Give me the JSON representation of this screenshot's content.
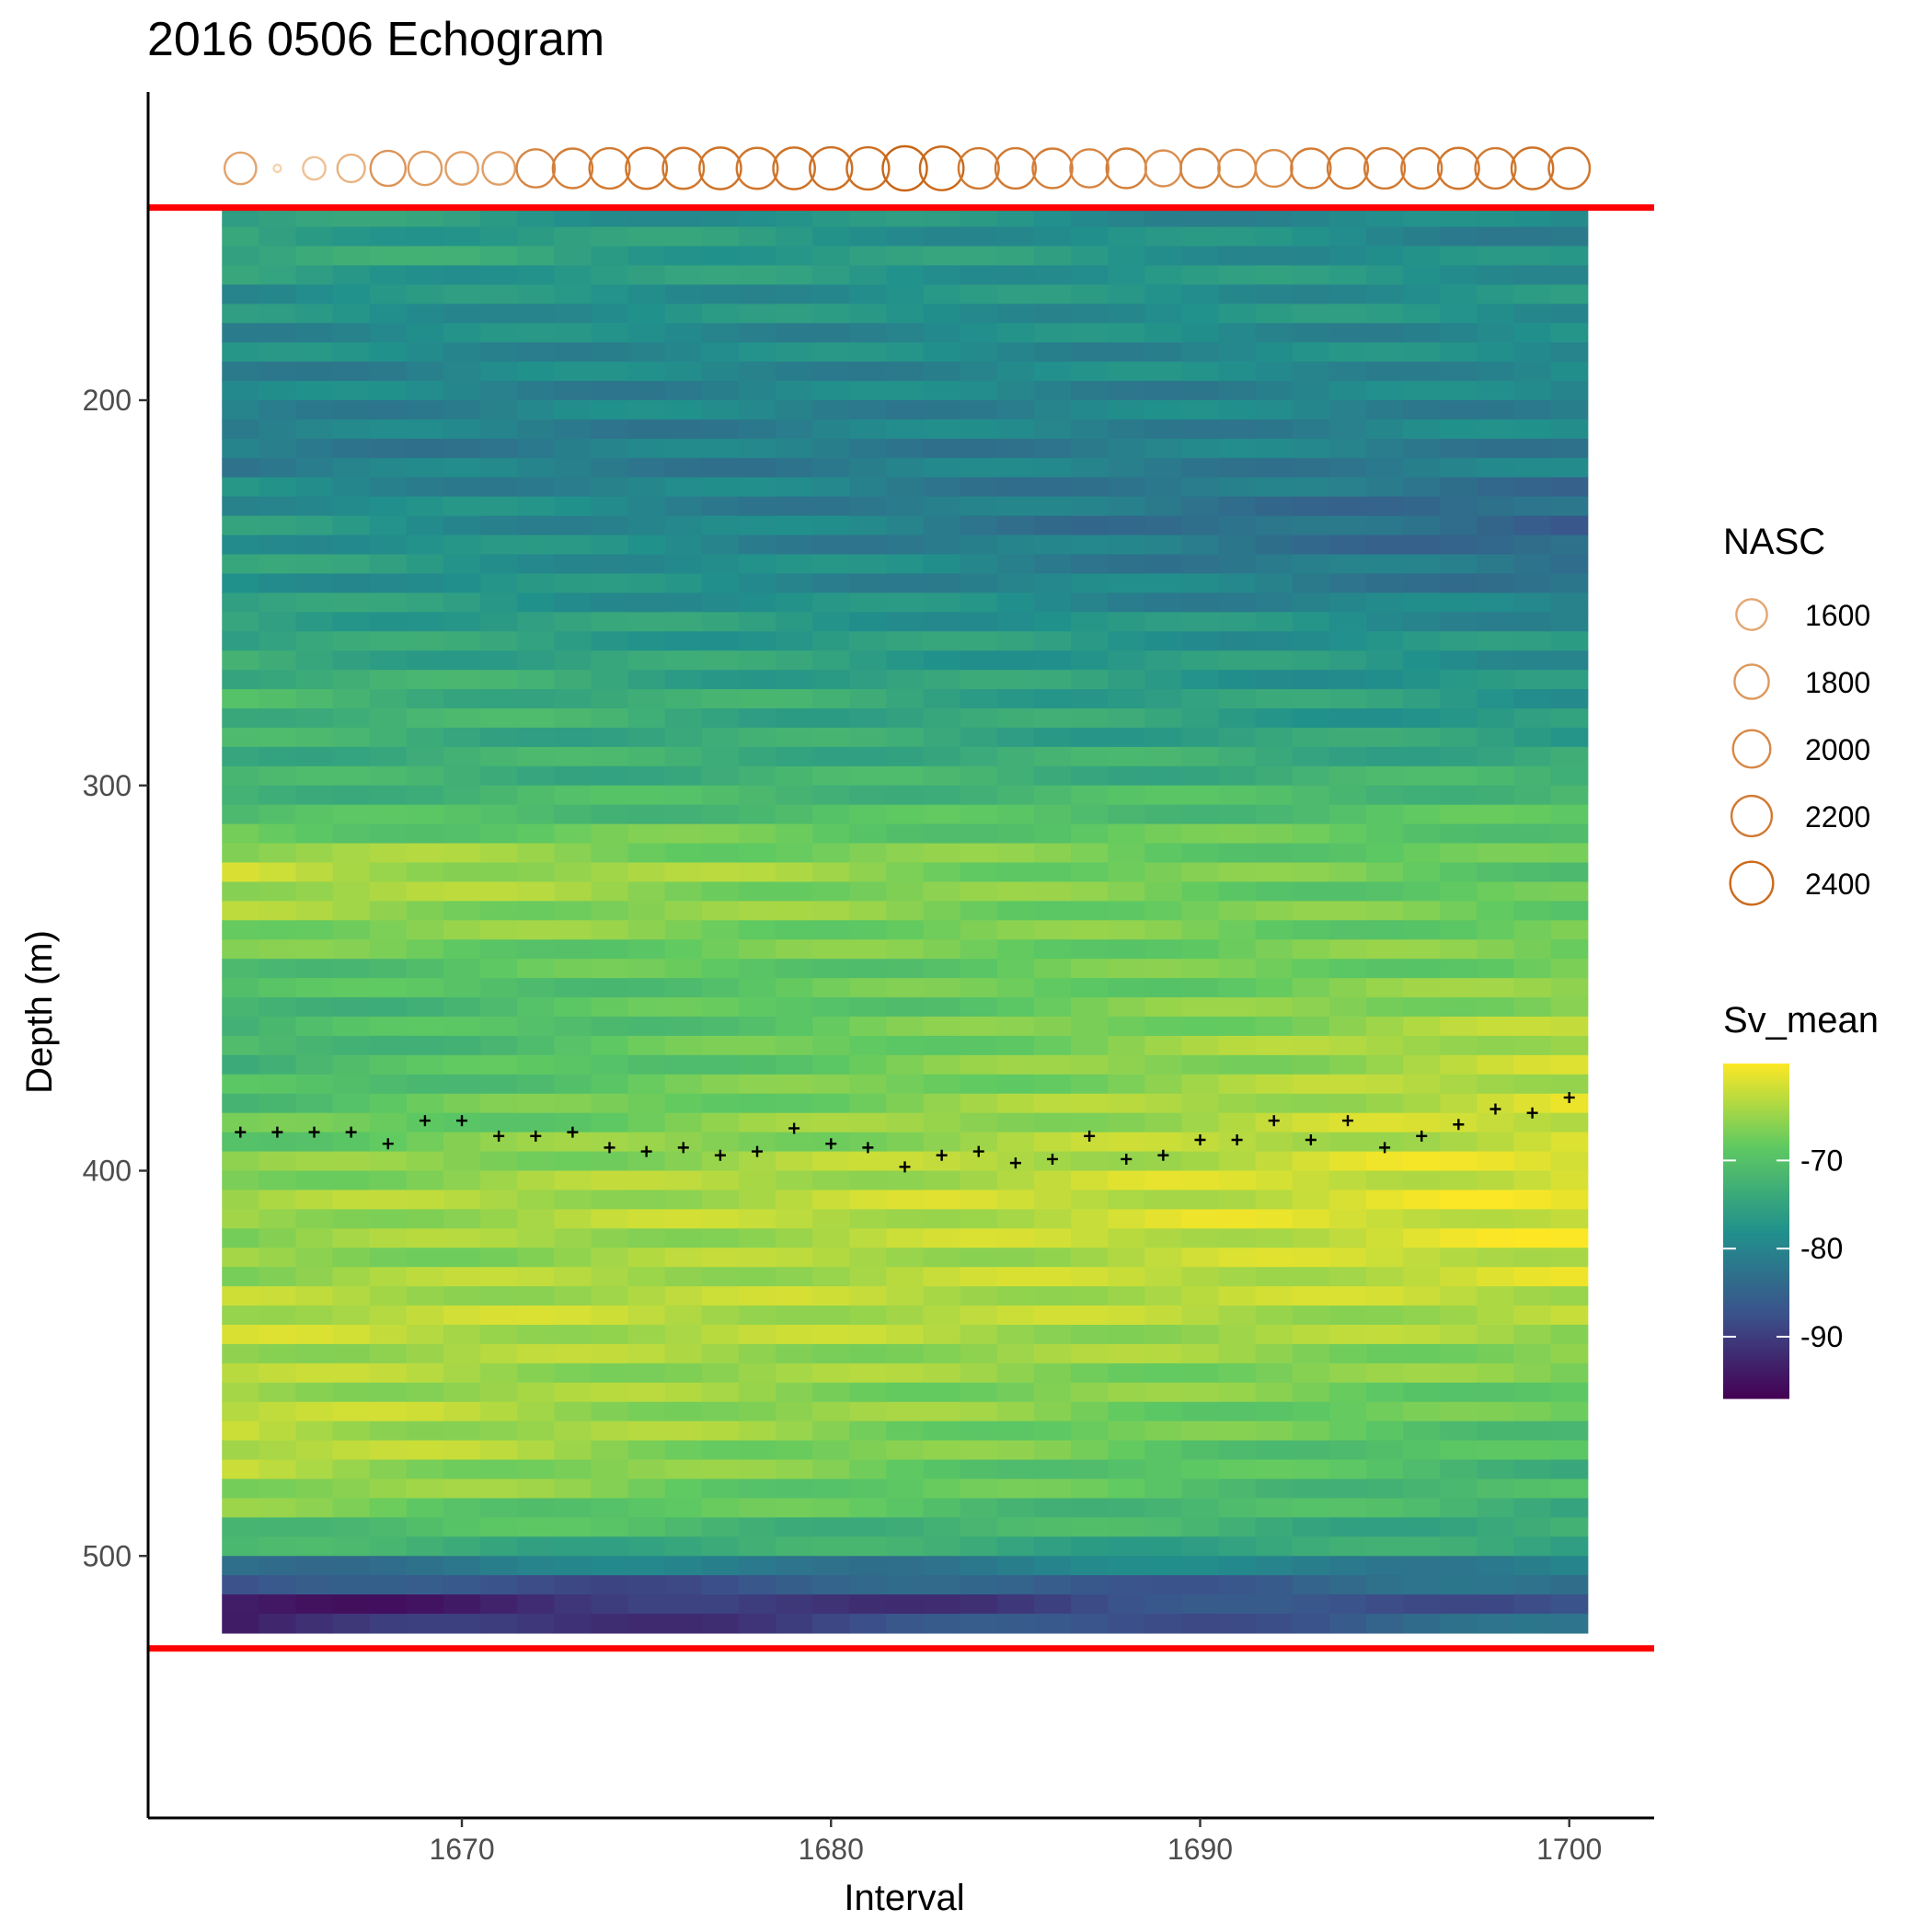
{
  "chart_data": {
    "type": "heatmap",
    "title": "2016 0506 Echogram",
    "xlabel": "Interval",
    "ylabel": "Depth (m)",
    "x_range": [
      1663.5,
      1700.5
    ],
    "depth_range": [
      150,
      520
    ],
    "depth_bin_m": 5,
    "xlim": [
      1661.5,
      1702.3
    ],
    "ylim": [
      568,
      120
    ],
    "x_ticks": [
      1670,
      1680,
      1690,
      1700
    ],
    "y_ticks": [
      200,
      300,
      400,
      500
    ],
    "reference_lines": [
      150,
      524
    ],
    "reference_line_color": "#ff0000",
    "legend_position": "right",
    "grid": false,
    "sv_legend": {
      "title": "Sv_mean",
      "range": [
        -97,
        -59
      ],
      "breaks": [
        -70,
        -80,
        -90
      ],
      "colormap": "viridis",
      "colors": [
        "#440154",
        "#3b528b",
        "#21918c",
        "#5ec962",
        "#fde725"
      ]
    },
    "nasc_legend": {
      "title": "NASC",
      "breaks": [
        1600,
        1800,
        2000,
        2200,
        2400
      ],
      "color_low": "#f5d3b0",
      "color_high": "#c86413"
    },
    "nasc_series": {
      "name": "NASC",
      "x": [
        1664,
        1665,
        1666,
        1667,
        1668,
        1669,
        1670,
        1671,
        1672,
        1673,
        1674,
        1675,
        1676,
        1677,
        1678,
        1679,
        1680,
        1681,
        1682,
        1683,
        1684,
        1685,
        1686,
        1687,
        1688,
        1689,
        1690,
        1691,
        1692,
        1693,
        1694,
        1695,
        1696,
        1697,
        1698,
        1699,
        1700
      ],
      "y": [
        1650,
        1000,
        1250,
        1450,
        1850,
        1750,
        1700,
        1700,
        2050,
        2150,
        2200,
        2250,
        2250,
        2300,
        2250,
        2300,
        2350,
        2350,
        2500,
        2450,
        2200,
        2200,
        2150,
        2050,
        2150,
        1900,
        2100,
        2000,
        1950,
        2150,
        2200,
        2200,
        2200,
        2250,
        2200,
        2300,
        2250
      ]
    },
    "max_sv_depth_series": {
      "name": "max Sv depth",
      "x": [
        1664,
        1665,
        1666,
        1667,
        1668,
        1669,
        1670,
        1671,
        1672,
        1673,
        1674,
        1675,
        1676,
        1677,
        1678,
        1679,
        1680,
        1681,
        1682,
        1683,
        1684,
        1685,
        1686,
        1687,
        1688,
        1689,
        1690,
        1691,
        1692,
        1693,
        1694,
        1695,
        1696,
        1697,
        1698,
        1699,
        1700
      ],
      "y": [
        390,
        390,
        390,
        390,
        393,
        387,
        387,
        391,
        391,
        390,
        394,
        395,
        394,
        396,
        395,
        389,
        393,
        394,
        399,
        396,
        395,
        398,
        397,
        391,
        397,
        396,
        392,
        392,
        387,
        392,
        387,
        394,
        391,
        388,
        384,
        385,
        381
      ]
    },
    "sv_profile": {
      "depth": [
        150,
        155,
        160,
        165,
        170,
        175,
        180,
        185,
        190,
        195,
        200,
        205,
        210,
        215,
        220,
        225,
        230,
        235,
        240,
        245,
        250,
        255,
        260,
        265,
        270,
        275,
        280,
        285,
        290,
        295,
        300,
        305,
        310,
        315,
        320,
        325,
        330,
        335,
        340,
        345,
        350,
        355,
        360,
        365,
        370,
        375,
        380,
        385,
        390,
        395,
        400,
        405,
        410,
        415,
        420,
        425,
        430,
        435,
        440,
        445,
        450,
        455,
        460,
        465,
        470,
        475,
        480,
        485,
        490,
        495,
        500,
        505,
        510,
        515
      ],
      "sv_start": [
        -76,
        -75,
        -74,
        -76,
        -78,
        -78,
        -79,
        -79,
        -80,
        -80,
        -80,
        -81,
        -81,
        -81,
        -79,
        -78,
        -77,
        -77,
        -76,
        -77,
        -76,
        -75,
        -75,
        -74,
        -73,
        -72,
        -72,
        -73,
        -73,
        -73,
        -72,
        -71,
        -68,
        -65,
        -63,
        -64,
        -65,
        -66,
        -68,
        -70,
        -71,
        -72,
        -72,
        -72,
        -72,
        -71,
        -70,
        -69,
        -68,
        -67,
        -66,
        -65,
        -65,
        -66,
        -66,
        -65,
        -64,
        -63,
        -63,
        -64,
        -64,
        -64,
        -63,
        -63,
        -63,
        -64,
        -65,
        -67,
        -70,
        -73,
        -82,
        -88,
        -94,
        -93
      ],
      "sv_end": [
        -80,
        -80,
        -79,
        -78,
        -78,
        -78,
        -79,
        -79,
        -79,
        -80,
        -80,
        -80,
        -81,
        -81,
        -83,
        -84,
        -85,
        -84,
        -83,
        -82,
        -81,
        -79,
        -78,
        -78,
        -78,
        -77,
        -77,
        -76,
        -74,
        -73,
        -71,
        -70,
        -69,
        -69,
        -69,
        -69,
        -68,
        -68,
        -67,
        -67,
        -66,
        -65,
        -64,
        -63,
        -63,
        -63,
        -62,
        -62,
        -62,
        -61,
        -61,
        -61,
        -61,
        -61,
        -62,
        -62,
        -63,
        -64,
        -65,
        -66,
        -67,
        -68,
        -69,
        -70,
        -71,
        -72,
        -72,
        -73,
        -74,
        -75,
        -80,
        -84,
        -86,
        -84
      ]
    }
  }
}
